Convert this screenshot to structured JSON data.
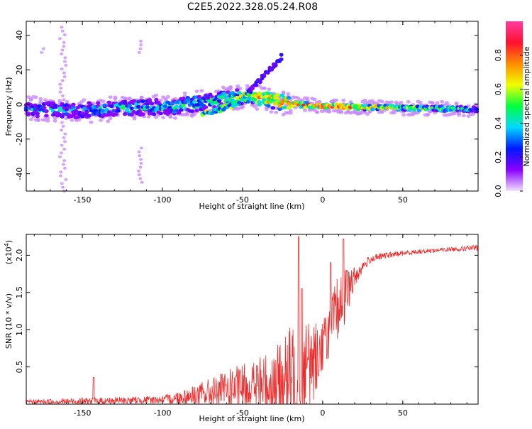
{
  "title": "C2E5.2022.328.05.24.R08",
  "chart_data": [
    {
      "type": "heatmap",
      "name": "spectrogram",
      "xlabel": "Height of straight line (km)",
      "ylabel": "Frequency (Hz)",
      "xlim": [
        -185,
        97
      ],
      "ylim": [
        -50,
        48
      ],
      "xticks": [
        -150,
        -100,
        -50,
        0,
        50
      ],
      "xtick_labels": [
        "-150",
        "-100",
        "-50",
        "0",
        "50"
      ],
      "yticks": [
        -40,
        -20,
        0,
        20,
        40
      ],
      "ytick_labels": [
        "-40",
        "-20",
        "0",
        "20",
        "40"
      ],
      "colorbar": {
        "label": "Normalized spectral amplitude",
        "range": [
          0,
          1
        ],
        "ticks": [
          0.0,
          0.2,
          0.4,
          0.6,
          0.8
        ],
        "tick_labels": [
          "0.0",
          "0.2",
          "0.4",
          "0.6",
          "0.8"
        ],
        "colors": [
          "#f2e2ff",
          "#8a00ff",
          "#0018ff",
          "#00d8ff",
          "#00ff40",
          "#f0ff00",
          "#ff8c00",
          "#ff1030",
          "#ff3ca0"
        ]
      },
      "trend": {
        "x": [
          -185,
          -150,
          -120,
          -90,
          -70,
          -55,
          -45,
          -35,
          -25,
          -15,
          0,
          20,
          50,
          80,
          97
        ],
        "freq": [
          -2.5,
          -3.5,
          -2,
          -1,
          2,
          4,
          5,
          3,
          1,
          0,
          -1,
          -1.5,
          -2,
          -2.5,
          -3
        ],
        "amplitude": [
          0.35,
          0.3,
          0.4,
          0.4,
          0.45,
          0.45,
          0.6,
          0.7,
          0.75,
          0.8,
          0.85,
          0.75,
          0.6,
          0.55,
          0.4
        ]
      },
      "branch": {
        "x": [
          -75,
          -65,
          -55,
          -45,
          -35,
          -25
        ],
        "freq": [
          -6,
          -3,
          0,
          8,
          18,
          28
        ]
      }
    },
    {
      "type": "line",
      "name": "snr",
      "xlabel": "Height of straight line (km)",
      "ylabel": "SNR (10 * v/v)",
      "yscale_label": "(x10",
      "yscale_exp": "4",
      "yscale_close": ")",
      "color": "#ee2b2b",
      "xlim": [
        -185,
        97
      ],
      "ylim": [
        0,
        2.28
      ],
      "xticks": [
        -150,
        -100,
        -50,
        0,
        50
      ],
      "xtick_labels": [
        "-150",
        "-100",
        "-50",
        "0",
        "50"
      ],
      "yticks": [
        0.5,
        1.0,
        1.5,
        2.0
      ],
      "ytick_labels": [
        "0.5",
        "1.0",
        "1.5",
        "2.0"
      ],
      "envelope": {
        "x": [
          -185,
          -145,
          -100,
          -85,
          -70,
          -55,
          -40,
          -28,
          -20,
          -15,
          -10,
          -5,
          0,
          5,
          10,
          15,
          20,
          25,
          30,
          40,
          60,
          80,
          97
        ],
        "base": [
          0.03,
          0.04,
          0.06,
          0.1,
          0.15,
          0.2,
          0.25,
          0.3,
          0.35,
          0.4,
          0.5,
          0.6,
          0.8,
          1.05,
          1.3,
          1.5,
          1.7,
          1.85,
          1.95,
          2.0,
          2.05,
          2.08,
          2.1
        ],
        "amp": [
          0.03,
          0.05,
          0.05,
          0.12,
          0.2,
          0.3,
          0.4,
          0.5,
          0.7,
          0.9,
          0.7,
          0.5,
          0.35,
          0.4,
          0.45,
          0.35,
          0.15,
          0.08,
          0.05,
          0.04,
          0.03,
          0.03,
          0.04
        ]
      },
      "peaks": [
        {
          "x": -143,
          "y": 0.36
        },
        {
          "x": -15,
          "y": 2.25
        },
        {
          "x": -13,
          "y": 1.55
        },
        {
          "x": 13,
          "y": 2.22
        },
        {
          "x": 5,
          "y": 1.9
        }
      ]
    }
  ]
}
